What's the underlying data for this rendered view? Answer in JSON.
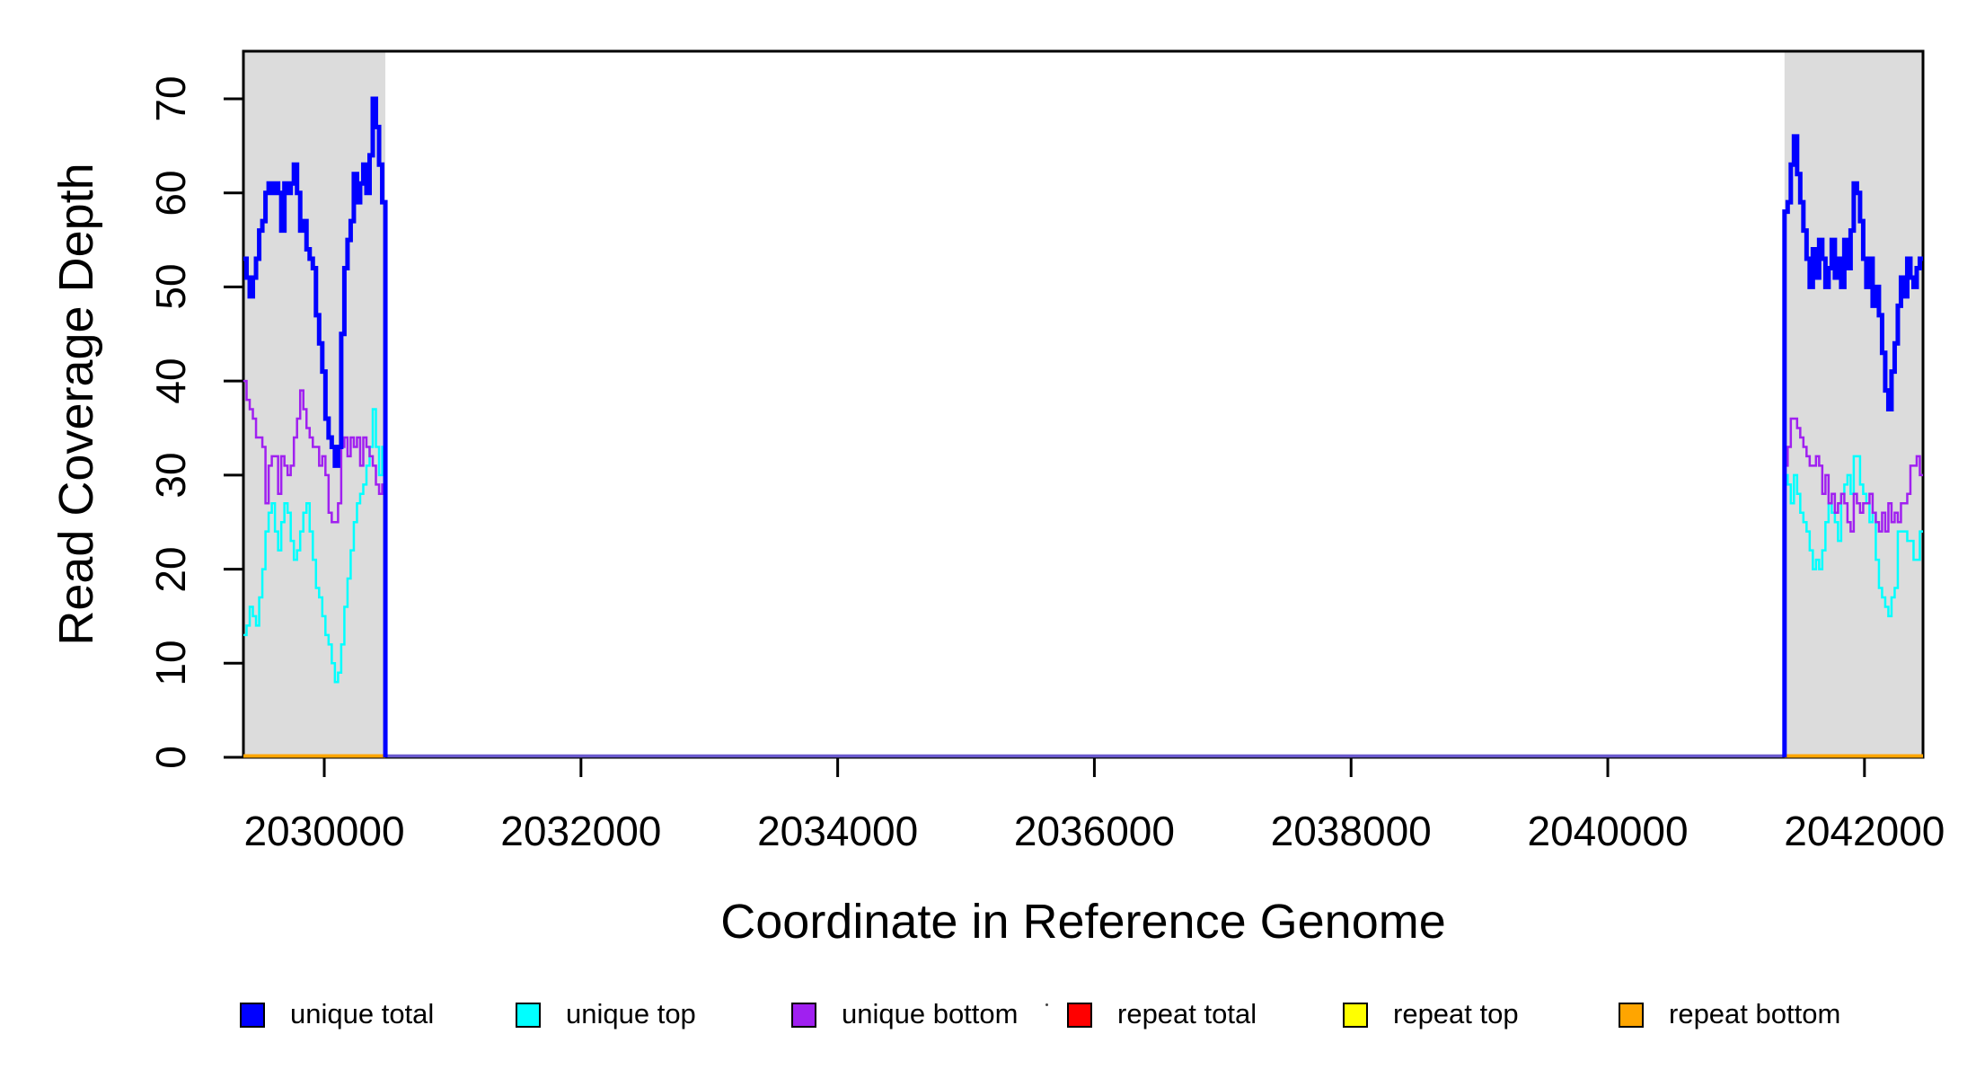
{
  "figure": {
    "background": "#ffffff"
  },
  "chart_data": {
    "type": "line",
    "title": "",
    "xlabel": "Coordinate in Reference Genome",
    "ylabel": "Read Coverage Depth",
    "xlim": [
      2029370,
      2042456
    ],
    "ylim": [
      0,
      75
    ],
    "x_ticks": [
      "2030000",
      "2032000",
      "2034000",
      "2036000",
      "2038000",
      "2040000",
      "2042000"
    ],
    "x_tick_values": [
      2030000,
      2032000,
      2034000,
      2036000,
      2038000,
      2040000,
      2042000
    ],
    "y_ticks": [
      "0",
      "10",
      "20",
      "30",
      "40",
      "50",
      "60",
      "70"
    ],
    "y_tick_values": [
      0,
      10,
      20,
      30,
      40,
      50,
      60,
      70
    ],
    "grid": false,
    "legend_position": "bottom",
    "shaded_region_color": "#DCDCDC",
    "shaded_regions": [
      {
        "x0": 2029370,
        "x1": 2030476
      },
      {
        "x0": 2041377,
        "x1": 2042456
      }
    ],
    "zero_lines": [
      {
        "name": "repeat-total-zero",
        "color": "#FF0000",
        "y": 0,
        "regions": [
          [
            2029370,
            2030476
          ],
          [
            2041377,
            2042456
          ]
        ]
      },
      {
        "name": "repeat-top-zero",
        "color": "#FFFF00",
        "y": 0,
        "regions": [
          [
            2029370,
            2030476
          ],
          [
            2041377,
            2042456
          ]
        ]
      },
      {
        "name": "repeat-bottom-zero",
        "color": "#FFA500",
        "y": 0,
        "regions": [
          [
            2029370,
            2030476
          ],
          [
            2041377,
            2042456
          ]
        ]
      },
      {
        "name": "gap-baseline",
        "color": "#6A5ACD",
        "y": 0,
        "regions": [
          [
            2030476,
            2041377
          ]
        ]
      }
    ],
    "step_series": [
      {
        "name": "unique top",
        "color": "#00FFFF",
        "width": 2.5,
        "segments": [
          {
            "x_start": 2029370,
            "bin_width": 24.58,
            "rise_from_zero": false,
            "drop_to_zero": true,
            "values": [
              13,
              14,
              16,
              15,
              14,
              17,
              20,
              24,
              26,
              27,
              24,
              22,
              25,
              27,
              26,
              23,
              21,
              22,
              24,
              26,
              27,
              24,
              21,
              18,
              17,
              15,
              13,
              12,
              10,
              8,
              9,
              12,
              16,
              19,
              22,
              25,
              27,
              28,
              29,
              31,
              33,
              37,
              33,
              30,
              33
            ]
          },
          {
            "x_start": 2041377,
            "bin_width": 24.52,
            "rise_from_zero": true,
            "drop_to_zero": false,
            "values": [
              30,
              29,
              27,
              30,
              28,
              26,
              25,
              24,
              22,
              20,
              21,
              20,
              22,
              25,
              27,
              26,
              25,
              23,
              28,
              29,
              30,
              28,
              32,
              32,
              29,
              28,
              27,
              25,
              26,
              21,
              18,
              17,
              16,
              15,
              17,
              18,
              24,
              24,
              24,
              23,
              23,
              21,
              21,
              24
            ]
          }
        ]
      },
      {
        "name": "unique bottom",
        "color": "#A020F0",
        "width": 2.5,
        "segments": [
          {
            "x_start": 2029370,
            "bin_width": 24.58,
            "rise_from_zero": false,
            "drop_to_zero": true,
            "values": [
              40,
              38,
              37,
              36,
              34,
              34,
              33,
              27,
              31,
              32,
              32,
              28,
              32,
              31,
              30,
              31,
              34,
              36,
              39,
              37,
              35,
              34,
              33,
              33,
              31,
              32,
              30,
              26,
              25,
              25,
              27,
              33,
              34,
              32,
              34,
              33,
              34,
              31,
              34,
              33,
              32,
              31,
              29,
              28,
              29
            ]
          },
          {
            "x_start": 2041377,
            "bin_width": 24.52,
            "rise_from_zero": true,
            "drop_to_zero": false,
            "values": [
              31,
              33,
              36,
              36,
              35,
              34,
              33,
              32,
              31,
              31,
              32,
              31,
              28,
              30,
              27,
              28,
              26,
              27,
              28,
              27,
              25,
              24,
              28,
              27,
              26,
              27,
              27,
              28,
              26,
              25,
              24,
              26,
              24,
              27,
              25,
              26,
              25,
              27,
              27,
              28,
              31,
              31,
              32,
              30
            ]
          }
        ]
      },
      {
        "name": "unique total",
        "color": "#0000FF",
        "width": 5,
        "segments": [
          {
            "x_start": 2029370,
            "bin_width": 24.58,
            "rise_from_zero": false,
            "drop_to_zero": true,
            "values": [
              53,
              51,
              49,
              51,
              53,
              56,
              57,
              60,
              61,
              60,
              61,
              60,
              56,
              61,
              60,
              61,
              63,
              60,
              56,
              57,
              54,
              53,
              52,
              47,
              44,
              41,
              36,
              34,
              33,
              31,
              33,
              45,
              52,
              55,
              57,
              62,
              59,
              61,
              63,
              60,
              64,
              70,
              67,
              63,
              59
            ]
          },
          {
            "x_start": 2041377,
            "bin_width": 24.52,
            "rise_from_zero": true,
            "drop_to_zero": false,
            "values": [
              58,
              59,
              63,
              66,
              62,
              59,
              56,
              53,
              50,
              54,
              51,
              55,
              53,
              50,
              52,
              55,
              51,
              53,
              50,
              55,
              52,
              56,
              61,
              60,
              57,
              53,
              50,
              53,
              48,
              50,
              47,
              43,
              39,
              37,
              41,
              44,
              48,
              51,
              49,
              53,
              51,
              50,
              52,
              53
            ]
          }
        ]
      }
    ]
  },
  "legend": {
    "items": [
      {
        "label": "unique total",
        "color": "#0000FF"
      },
      {
        "label": "unique top",
        "color": "#00FFFF"
      },
      {
        "label": "unique bottom",
        "color": "#A020F0"
      },
      {
        "label": "repeat total",
        "color": "#FF0000"
      },
      {
        "label": "repeat top",
        "color": "#FFFF00"
      },
      {
        "label": "repeat bottom",
        "color": "#FFA500"
      }
    ]
  }
}
